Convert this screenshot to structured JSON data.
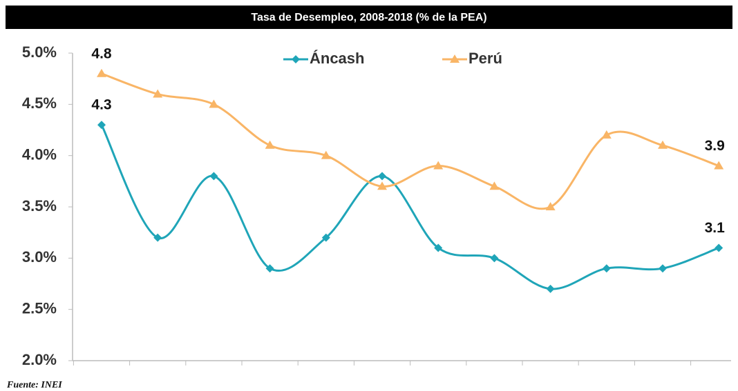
{
  "chart_data": {
    "type": "line",
    "title": "Tasa de Desempleo, 2008-2018 (% de la PEA)",
    "categories": [
      null,
      null,
      null,
      null,
      null,
      null,
      null,
      null,
      null,
      null,
      null,
      null
    ],
    "series": [
      {
        "name": "Áncash",
        "color": "#1fa5b8",
        "marker": "diamond",
        "values": [
          4.3,
          3.2,
          3.8,
          2.9,
          3.2,
          3.8,
          3.1,
          3.0,
          2.7,
          2.9,
          2.9,
          3.1
        ],
        "value_labels": [
          "4.3",
          null,
          null,
          null,
          null,
          null,
          null,
          null,
          null,
          null,
          null,
          "3.1"
        ]
      },
      {
        "name": "Perú",
        "color": "#f9b566",
        "marker": "triangle",
        "values": [
          4.8,
          4.6,
          4.5,
          4.1,
          4.0,
          3.7,
          3.9,
          3.7,
          3.5,
          4.2,
          4.1,
          3.9
        ],
        "value_labels": [
          "4.8",
          null,
          null,
          null,
          null,
          null,
          null,
          null,
          null,
          null,
          null,
          "3.9"
        ]
      }
    ],
    "ylim": [
      2,
      5
    ],
    "yticks": [
      {
        "value": 2,
        "label": "2.0%"
      },
      {
        "value": 2.5,
        "label": "2.5%"
      },
      {
        "value": 3,
        "label": "3.0%"
      },
      {
        "value": 3.5,
        "label": "3.5%"
      },
      {
        "value": 4,
        "label": "4.0%"
      },
      {
        "value": 4.5,
        "label": "4.5%"
      },
      {
        "value": 5,
        "label": "5.0%"
      }
    ],
    "grid": false,
    "smooth": true,
    "legend": "top",
    "source": "Fuente: INEI"
  }
}
